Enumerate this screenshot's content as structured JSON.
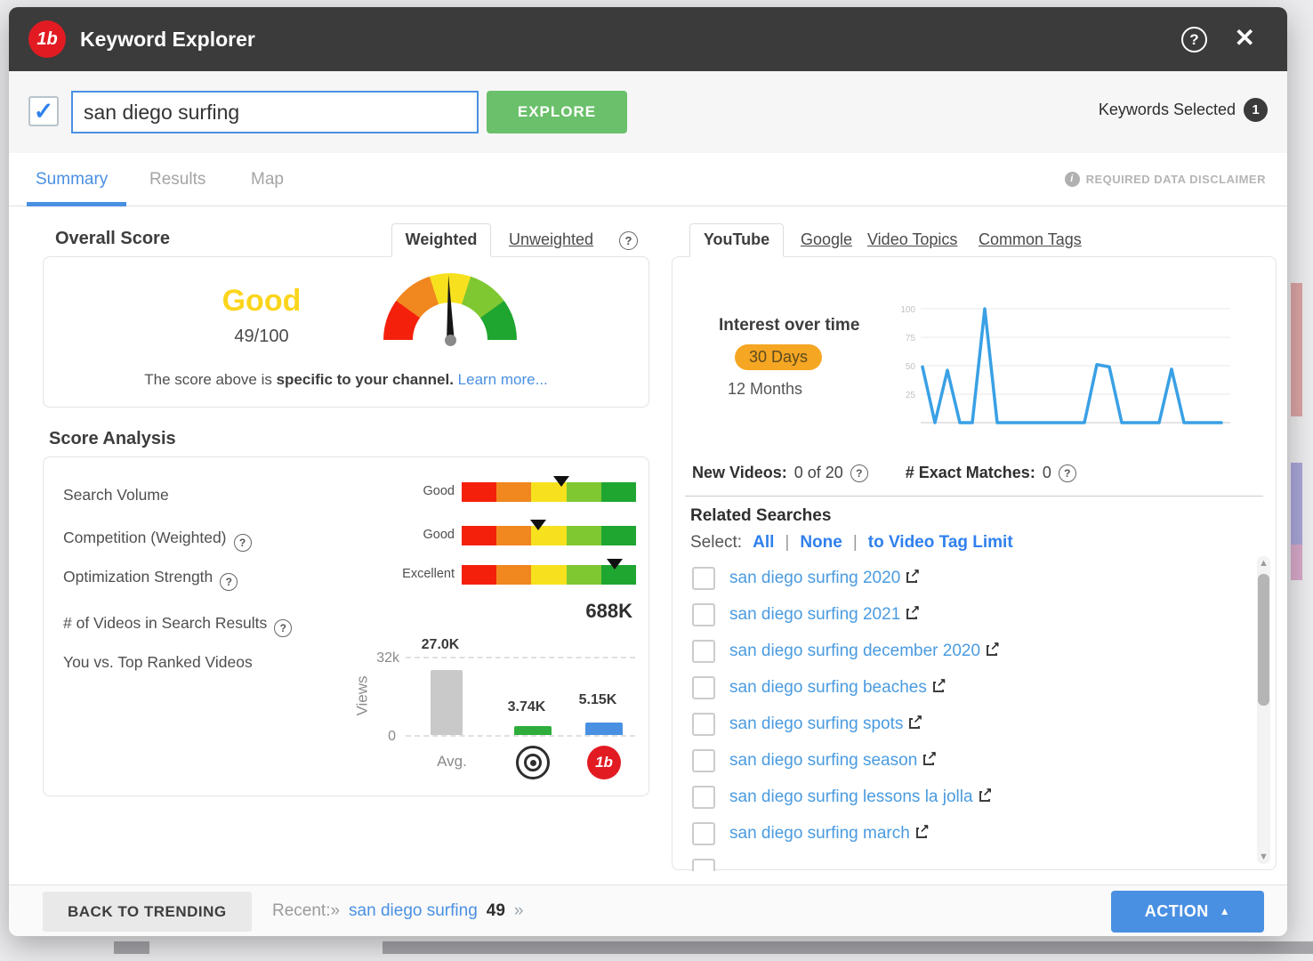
{
  "window": {
    "title": "Keyword Explorer"
  },
  "icons": {
    "logo": "1b",
    "help": "?",
    "close": "✕",
    "check": "✓",
    "question": "?",
    "info": "i",
    "external": "↗",
    "up_arrow": "▲",
    "down_arrow": "▼",
    "action_caret": "▲",
    "pipe": "|"
  },
  "search": {
    "value": "san diego surfing",
    "explore_label": "EXPLORE",
    "keywords_selected_label": "Keywords Selected",
    "keywords_selected_count": "1"
  },
  "tabs": {
    "items": [
      "Summary",
      "Results",
      "Map"
    ],
    "active": "Summary",
    "disclaimer": "REQUIRED DATA DISCLAIMER"
  },
  "overall": {
    "heading": "Overall Score",
    "weight_tab_active": "Weighted",
    "weight_tab_inactive": "Unweighted",
    "rating": "Good",
    "score": "49/100",
    "score_value": 49,
    "score_max": 100,
    "note_prefix": "The score above is ",
    "note_bold": "specific to your channel.",
    "learn_more": "Learn more..."
  },
  "score_analysis": {
    "heading": "Score Analysis",
    "rows": [
      {
        "label": "Search Volume",
        "rating": "Good",
        "marker_pct": 57
      },
      {
        "label": "Competition (Weighted)",
        "rating": "Good",
        "marker_pct": 44
      },
      {
        "label": "Optimization Strength",
        "rating": "Excellent",
        "marker_pct": 88
      }
    ],
    "videos_row": {
      "label": "# of Videos in Search Results",
      "value": "688K"
    },
    "compare_label": "You vs. Top Ranked Videos"
  },
  "chart_data": [
    {
      "id": "interest_over_time",
      "type": "line",
      "title": "Interest over time",
      "period_selected": "30 Days",
      "period_alt": "12 Months",
      "x": [
        1,
        2,
        3,
        4,
        5,
        6,
        7,
        8,
        9,
        10,
        11,
        12,
        13,
        14,
        15,
        16,
        17,
        18,
        19,
        20,
        21,
        22,
        23,
        24,
        25
      ],
      "values": [
        49,
        0,
        46,
        0,
        0,
        100,
        0,
        0,
        0,
        0,
        0,
        0,
        0,
        0,
        51,
        49,
        0,
        0,
        0,
        0,
        47,
        0,
        0,
        0,
        0
      ],
      "ylim": [
        0,
        100
      ],
      "yticks": [
        100,
        75,
        50,
        25
      ],
      "ytick_labels": [
        "100",
        "75",
        "50",
        "25"
      ],
      "line_color": "#39a0e5",
      "grid": true,
      "legend": "none"
    },
    {
      "id": "you_vs_top_ranked",
      "type": "bar",
      "title": "You vs. Top Ranked Videos",
      "categories": [
        "Avg.",
        "Top Ranked",
        "Your Channel"
      ],
      "values": [
        27000,
        3740,
        5150
      ],
      "value_labels": [
        "27.0K",
        "3.74K",
        "5.15K"
      ],
      "bar_colors": [
        "#c9c9c9",
        "#2fad3c",
        "#4a90e2"
      ],
      "ylabel": "Views",
      "ylim": [
        0,
        32000
      ],
      "ytick_labels": [
        "32k",
        "0"
      ],
      "grid": "dashed top and baseline"
    }
  ],
  "right_panel": {
    "tabs": [
      "YouTube",
      "Google",
      "Video Topics",
      "Common Tags"
    ],
    "active_tab": "YouTube",
    "stats": {
      "new_videos_label": "New Videos:",
      "new_videos_value": "0 of 20",
      "exact_label": "# Exact Matches:",
      "exact_value": "0"
    },
    "related": {
      "heading": "Related Searches",
      "select_label": "Select:",
      "select_options": [
        "All",
        "None",
        "to Video Tag Limit"
      ],
      "items": [
        "san diego surfing 2020",
        "san diego surfing 2021",
        "san diego surfing december 2020",
        "san diego surfing beaches",
        "san diego surfing spots",
        "san diego surfing season",
        "san diego surfing lessons la jolla",
        "san diego surfing march"
      ]
    }
  },
  "footer": {
    "back_label": "BACK TO TRENDING",
    "recent_label": "Recent:»",
    "recent_link": "san diego surfing",
    "recent_score": "49",
    "recent_arrow": "»",
    "action_label": "ACTION"
  }
}
